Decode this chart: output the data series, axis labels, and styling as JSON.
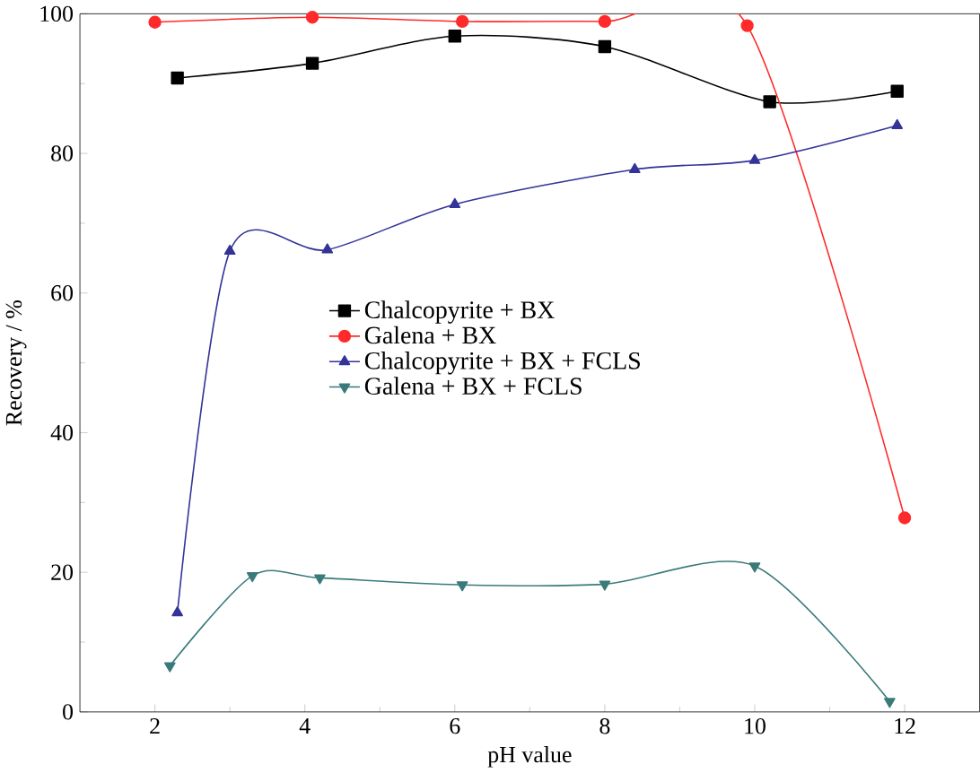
{
  "chart_data": {
    "type": "line",
    "xlabel": "pH value",
    "ylabel": "Recovery / %",
    "xlim": [
      1,
      13
    ],
    "ylim": [
      0,
      100
    ],
    "xticks": [
      2,
      4,
      6,
      8,
      10,
      12
    ],
    "yticks": [
      0,
      20,
      40,
      60,
      80,
      100
    ],
    "legend": "center",
    "grid": false,
    "series": [
      {
        "name": "Chalcopyrite + BX",
        "color": "#000000",
        "marker": "square",
        "x": [
          2.3,
          4.1,
          6.0,
          8.0,
          10.2,
          11.9
        ],
        "values": [
          90.8,
          92.9,
          96.8,
          95.3,
          87.4,
          88.9
        ]
      },
      {
        "name": "Galena + BX",
        "color": "#ff2a2a",
        "marker": "circle",
        "x": [
          2.0,
          4.1,
          6.1,
          8.0,
          9.9,
          12.0
        ],
        "values": [
          98.8,
          99.5,
          98.9,
          98.9,
          98.3,
          27.8
        ]
      },
      {
        "name": "Chalcopyrite + BX + FCLS",
        "color": "#333399",
        "marker": "triangle",
        "x": [
          2.3,
          3.0,
          4.3,
          6.0,
          8.4,
          10.0,
          11.9
        ],
        "values": [
          14.2,
          66.0,
          66.2,
          72.7,
          77.7,
          79.0,
          84.0
        ]
      },
      {
        "name": "Galena + BX + FCLS",
        "color": "#3a7a7a",
        "marker": "triangle down",
        "x": [
          2.2,
          3.3,
          4.2,
          6.1,
          8.0,
          10.0,
          11.8
        ],
        "values": [
          6.6,
          19.5,
          19.2,
          18.2,
          18.3,
          20.9,
          1.5
        ]
      }
    ]
  }
}
